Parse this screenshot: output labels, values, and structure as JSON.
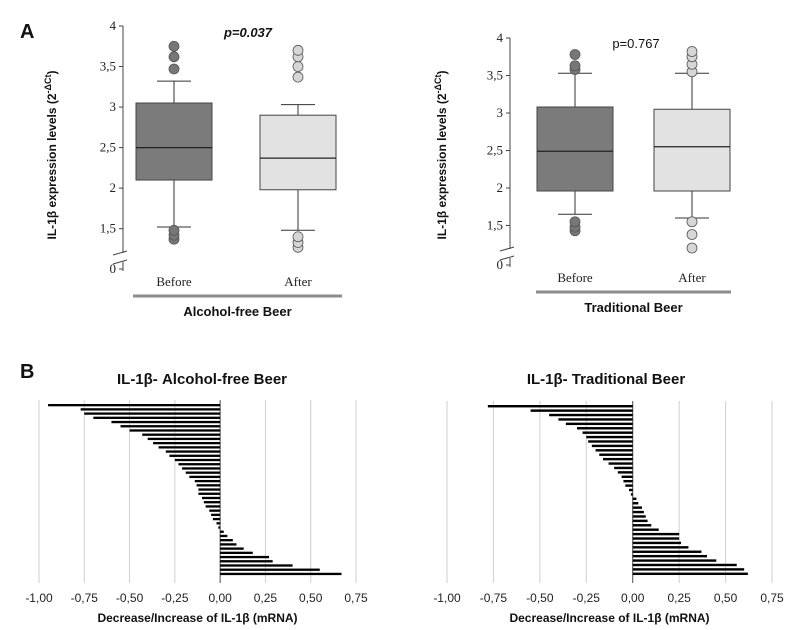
{
  "panels": {
    "a": "A",
    "b": "B"
  },
  "colors": {
    "before_box": "#7b7b7b",
    "after_box": "#e2e2e2",
    "outlier_before": "#777777",
    "outlier_after": "#d6d6d6",
    "bar": "#000000",
    "group_line": "#8c8c8c",
    "grid": "#cfcfcf"
  },
  "chart_data": [
    {
      "type": "box",
      "group_label": "Alcohol-free Beer",
      "p_value": "p=0.037",
      "p_italic": true,
      "ylabel_main": "IL-1β expression levels  (2",
      "ylabel_sup": "-ΔCt",
      "ylabel_end": ")",
      "yticks": [
        "4",
        "3,5",
        "3",
        "2,5",
        "2",
        "1,5",
        "0"
      ],
      "ytick_values": [
        4,
        3.5,
        3,
        2.5,
        2,
        1.5,
        1.2
      ],
      "ylim": [
        1.2,
        4
      ],
      "axis_break": true,
      "categories": [
        "Before",
        "After"
      ],
      "boxes": [
        {
          "q1": 2.1,
          "median": 2.5,
          "q3": 3.05,
          "whisker_low": 1.52,
          "whisker_high": 3.32,
          "outliers": [
            1.37,
            1.42,
            1.48,
            3.47,
            3.62,
            3.75
          ]
        },
        {
          "q1": 1.98,
          "median": 2.37,
          "q3": 2.9,
          "whisker_low": 1.48,
          "whisker_high": 3.03,
          "outliers": [
            1.27,
            1.33,
            1.4,
            3.37,
            3.5,
            3.62,
            3.7
          ]
        }
      ]
    },
    {
      "type": "box",
      "group_label": "Traditional Beer",
      "p_value": "p=0.767",
      "p_italic": false,
      "ylabel_main": "IL-1β expression levels (2",
      "ylabel_sup": "-ΔCt",
      "ylabel_end": ")",
      "yticks": [
        "4",
        "3,5",
        "3",
        "2,5",
        "2",
        "1,5",
        "0"
      ],
      "ytick_values": [
        4,
        3.5,
        3,
        2.5,
        2,
        1.5,
        1.2
      ],
      "ylim": [
        1.2,
        4
      ],
      "axis_break": true,
      "categories": [
        "Before",
        "After"
      ],
      "boxes": [
        {
          "q1": 1.96,
          "median": 2.49,
          "q3": 3.08,
          "whisker_low": 1.65,
          "whisker_high": 3.53,
          "outliers": [
            1.43,
            1.48,
            1.55,
            3.58,
            3.63,
            3.78
          ]
        },
        {
          "q1": 1.96,
          "median": 2.55,
          "q3": 3.05,
          "whisker_low": 1.6,
          "whisker_high": 3.53,
          "outliers": [
            1.2,
            1.38,
            1.55,
            3.55,
            3.65,
            3.75,
            3.82
          ]
        }
      ]
    },
    {
      "type": "bar",
      "orientation": "horizontal",
      "title": "IL-1β- Alcohol-free Beer",
      "xlabel": "Decrease/Increase of IL-1β (mRNA)",
      "xticks": [
        "-1,00",
        "-0,75",
        "-0,50",
        "-0,25",
        "0,00",
        "0,25",
        "0,50",
        "0,75"
      ],
      "xlim": [
        -1,
        0.75
      ],
      "grid": true,
      "values": [
        -0.95,
        -0.77,
        -0.75,
        -0.7,
        -0.6,
        -0.55,
        -0.5,
        -0.43,
        -0.4,
        -0.37,
        -0.34,
        -0.3,
        -0.28,
        -0.25,
        -0.23,
        -0.21,
        -0.19,
        -0.17,
        -0.14,
        -0.13,
        -0.12,
        -0.12,
        -0.1,
        -0.09,
        -0.08,
        -0.06,
        -0.05,
        -0.04,
        -0.02,
        -0.01,
        0.02,
        0.04,
        0.07,
        0.09,
        0.13,
        0.18,
        0.27,
        0.29,
        0.4,
        0.55,
        0.67
      ]
    },
    {
      "type": "bar",
      "orientation": "horizontal",
      "title": "IL-1β- Traditional Beer",
      "xlabel": "Decrease/Increase of IL-1β (mRNA)",
      "xticks": [
        "-1,00",
        "-0,75",
        "-0,50",
        "-0,25",
        "0,00",
        "0,25",
        "0,50",
        "0,75"
      ],
      "xlim": [
        -1,
        0.75
      ],
      "grid": true,
      "values": [
        -0.78,
        -0.55,
        -0.45,
        -0.4,
        -0.36,
        -0.3,
        -0.27,
        -0.25,
        -0.24,
        -0.22,
        -0.2,
        -0.18,
        -0.16,
        -0.13,
        -0.1,
        -0.08,
        -0.06,
        -0.05,
        -0.04,
        -0.02,
        -0.01,
        0.02,
        0.03,
        0.05,
        0.06,
        0.07,
        0.08,
        0.1,
        0.14,
        0.25,
        0.25,
        0.26,
        0.3,
        0.37,
        0.4,
        0.45,
        0.56,
        0.6,
        0.62
      ]
    }
  ]
}
